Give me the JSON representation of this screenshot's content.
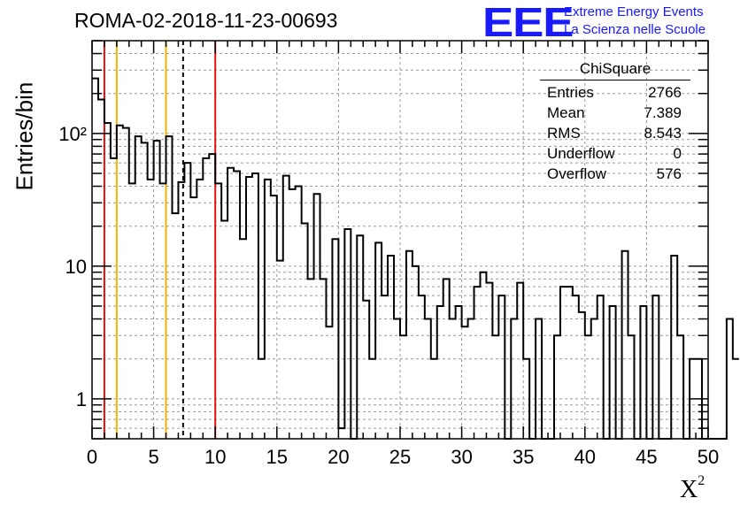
{
  "title": "ROMA-02-2018-11-23-00693",
  "logo": {
    "mark": "EEE",
    "line1": "Extreme Energy Events",
    "line2": "La Scienza nelle Scuole",
    "color": "#1a1aff"
  },
  "stats_box": {
    "name": "ChiSquare",
    "rows": [
      {
        "label": "Entries",
        "value": "2766"
      },
      {
        "label": "Mean",
        "value": "7.389"
      },
      {
        "label": "RMS",
        "value": "8.543"
      },
      {
        "label": "Underflow",
        "value": "0"
      },
      {
        "label": "Overflow",
        "value": "576"
      }
    ]
  },
  "chart_data": {
    "type": "histogram",
    "title": "ROMA-02-2018-11-23-00693",
    "xlabel": "X",
    "xlabel_sup": "2",
    "ylabel": "Entries/bin",
    "yscale": "log",
    "xlim": [
      0,
      50
    ],
    "ylim": [
      0.5,
      500
    ],
    "grid": true,
    "bin_width": 0.5,
    "x_ticks": [
      0,
      5,
      10,
      15,
      20,
      25,
      30,
      35,
      40,
      45,
      50
    ],
    "x_tick_labels": [
      "0",
      "5",
      "10",
      "15",
      "20",
      "25",
      "30",
      "35",
      "40",
      "45",
      "50"
    ],
    "y_ticks": [
      1,
      10,
      100
    ],
    "y_tick_labels": [
      "1",
      "10",
      "10²"
    ],
    "values": [
      260,
      180,
      120,
      65,
      115,
      110,
      42,
      95,
      85,
      45,
      88,
      42,
      95,
      25,
      43,
      60,
      33,
      45,
      65,
      70,
      42,
      22,
      55,
      52,
      16,
      47,
      50,
      2,
      45,
      34,
      11,
      48,
      38,
      40,
      21,
      8,
      35,
      8,
      3.5,
      16,
      0.6,
      19,
      0.4,
      17,
      5.5,
      2,
      15,
      6,
      12,
      4,
      3,
      13,
      10,
      6,
      4,
      2,
      5,
      8,
      4,
      5,
      3.5,
      4,
      7,
      9,
      7.5,
      3,
      6,
      0,
      4,
      7.5,
      2,
      0,
      4,
      0.5,
      0,
      3,
      7,
      7,
      6,
      4.5,
      3,
      4,
      6,
      0,
      5,
      0,
      13,
      3,
      0,
      5,
      0,
      6,
      0,
      0,
      12,
      3,
      0,
      2,
      2,
      0,
      0,
      0,
      0,
      4,
      2
    ],
    "vlines": [
      {
        "x": 1,
        "color": "#e01010",
        "style": "solid"
      },
      {
        "x": 2,
        "color": "#f0b400",
        "style": "solid"
      },
      {
        "x": 6,
        "color": "#f0b400",
        "style": "solid"
      },
      {
        "x": 7.389,
        "color": "#000000",
        "style": "dashed"
      },
      {
        "x": 10,
        "color": "#e01010",
        "style": "solid"
      }
    ],
    "legend_position": "top-right"
  }
}
